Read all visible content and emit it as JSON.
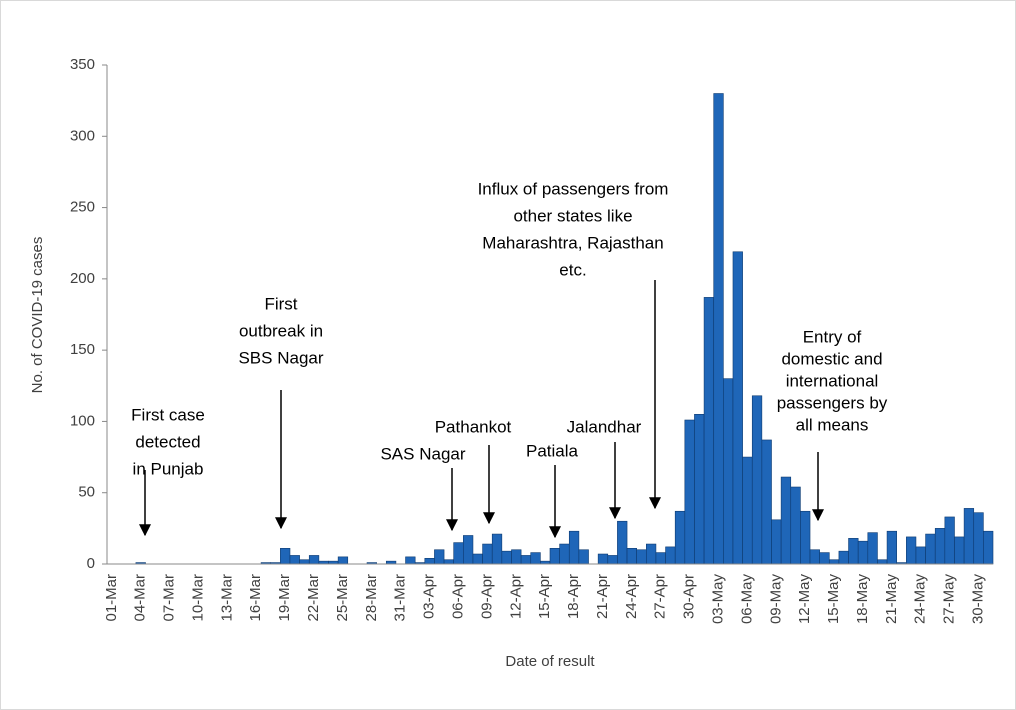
{
  "chart_data": {
    "type": "bar",
    "x_label": "Date of result",
    "y_label": "No. of COVID-19 cases",
    "color": "#1f66b8",
    "ylim": [
      0,
      350
    ],
    "yticks": [
      0,
      50,
      100,
      150,
      200,
      250,
      300,
      350
    ],
    "categories": [
      "01-Mar",
      null,
      null,
      "04-Mar",
      null,
      null,
      "07-Mar",
      null,
      null,
      "10-Mar",
      null,
      null,
      "13-Mar",
      null,
      null,
      "16-Mar",
      null,
      null,
      "19-Mar",
      null,
      null,
      "22-Mar",
      null,
      null,
      "25-Mar",
      null,
      null,
      "28-Mar",
      null,
      null,
      "31-Mar",
      null,
      null,
      "03-Apr",
      null,
      null,
      "06-Apr",
      null,
      null,
      "09-Apr",
      null,
      null,
      "12-Apr",
      null,
      null,
      "15-Apr",
      null,
      null,
      "18-Apr",
      null,
      null,
      "21-Apr",
      null,
      null,
      "24-Apr",
      null,
      null,
      "27-Apr",
      null,
      null,
      "30-Apr",
      null,
      null,
      "03-May",
      null,
      null,
      "06-May",
      null,
      null,
      "09-May",
      null,
      null,
      "12-May",
      null,
      null,
      "15-May",
      null,
      null,
      "18-May",
      null,
      null,
      "21-May",
      null,
      null,
      "24-May",
      null,
      null,
      "27-May",
      null,
      null,
      "30-May",
      null
    ],
    "values": [
      0,
      0,
      0,
      1,
      0,
      0,
      0,
      0,
      0,
      0,
      0,
      0,
      0,
      0,
      0,
      0,
      1,
      1,
      11,
      6,
      3,
      6,
      2,
      2,
      5,
      0,
      0,
      1,
      0,
      2,
      0,
      5,
      1,
      4,
      10,
      3,
      15,
      20,
      7,
      14,
      21,
      9,
      10,
      6,
      8,
      2,
      11,
      14,
      23,
      10,
      0,
      7,
      6,
      30,
      11,
      10,
      14,
      8,
      12,
      37,
      101,
      105,
      187,
      330,
      130,
      219,
      75,
      118,
      87,
      31,
      61,
      54,
      37,
      10,
      8,
      3,
      9,
      18,
      16,
      22,
      3,
      23,
      1,
      19,
      12,
      21,
      25,
      33,
      19,
      39,
      36,
      23
    ],
    "annotations": [
      {
        "lines": [
          "First case",
          "detected",
          "in Punjab"
        ]
      },
      {
        "lines": [
          "First",
          "outbreak in",
          "SBS Nagar"
        ]
      },
      {
        "lines": [
          "SAS Nagar"
        ]
      },
      {
        "lines": [
          "Pathankot"
        ]
      },
      {
        "lines": [
          "Patiala"
        ]
      },
      {
        "lines": [
          "Jalandhar"
        ]
      },
      {
        "lines": [
          "Influx of passengers from",
          "other states like",
          "Maharashtra, Rajasthan",
          "etc."
        ]
      },
      {
        "lines": [
          "Entry of",
          "domestic and",
          "international",
          "passengers by",
          "all means"
        ]
      }
    ]
  }
}
